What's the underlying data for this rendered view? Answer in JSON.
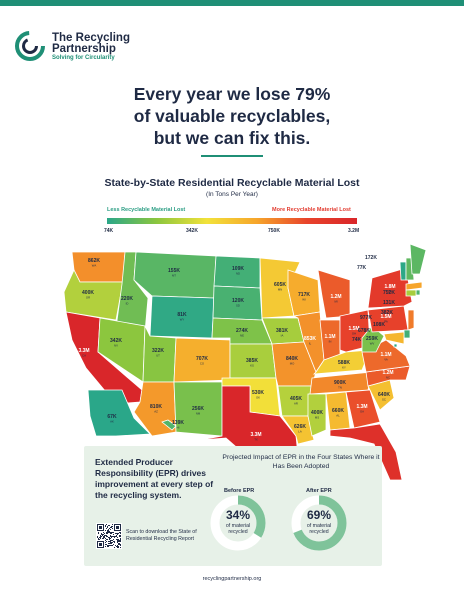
{
  "brand": {
    "name_line1": "The Recycling",
    "name_line2": "Partnership",
    "tagline": "Solving for Circularity",
    "accent_color": "#1f8f76"
  },
  "headline": {
    "line1": "Every year we lose 79%",
    "line2": "of valuable recyclables,",
    "line3": "but we can fix this."
  },
  "map": {
    "title": "State-by-State Residential Recyclable Material Lost",
    "subtitle": "(In Tons Per Year)",
    "legend": {
      "less": "Less Recyclable Material Lost",
      "more": "More Recyclable Material Lost",
      "ticks": [
        "74K",
        "342K",
        "750K",
        "3.2M"
      ]
    },
    "states": [
      {
        "abbr": "WA",
        "value": "862K"
      },
      {
        "abbr": "OR",
        "value": "400K"
      },
      {
        "abbr": "CA",
        "value": "3.3M"
      },
      {
        "abbr": "ID",
        "value": "220K"
      },
      {
        "abbr": "NV",
        "value": "342K"
      },
      {
        "abbr": "MT",
        "value": "155K"
      },
      {
        "abbr": "WY",
        "value": "81K"
      },
      {
        "abbr": "UT",
        "value": "322K"
      },
      {
        "abbr": "AZ",
        "value": "810K"
      },
      {
        "abbr": "CO",
        "value": "707K"
      },
      {
        "abbr": "NM",
        "value": "256K"
      },
      {
        "abbr": "ND",
        "value": "109K"
      },
      {
        "abbr": "SD",
        "value": "120K"
      },
      {
        "abbr": "NE",
        "value": "274K"
      },
      {
        "abbr": "KS",
        "value": "385K"
      },
      {
        "abbr": "OK",
        "value": "530K"
      },
      {
        "abbr": "TX",
        "value": "3.3M"
      },
      {
        "abbr": "MN",
        "value": "605K"
      },
      {
        "abbr": "IA",
        "value": "381K"
      },
      {
        "abbr": "MO",
        "value": "840K"
      },
      {
        "abbr": "AR",
        "value": "405K"
      },
      {
        "abbr": "LA",
        "value": "626K"
      },
      {
        "abbr": "WI",
        "value": "717K"
      },
      {
        "abbr": "IL",
        "value": "853K"
      },
      {
        "abbr": "MI",
        "value": "1.2M"
      },
      {
        "abbr": "IN",
        "value": "1.1M"
      },
      {
        "abbr": "OH",
        "value": "1.5M"
      },
      {
        "abbr": "KY",
        "value": "588K"
      },
      {
        "abbr": "TN",
        "value": "900K"
      },
      {
        "abbr": "MS",
        "value": "400K"
      },
      {
        "abbr": "AL",
        "value": "660K"
      },
      {
        "abbr": "GA",
        "value": "1.3M"
      },
      {
        "abbr": "FL",
        "value": "2.4M"
      },
      {
        "abbr": "SC",
        "value": "640K"
      },
      {
        "abbr": "NC",
        "value": "1.2M"
      },
      {
        "abbr": "VA",
        "value": "1.1M"
      },
      {
        "abbr": "WV",
        "value": "259K"
      },
      {
        "abbr": "PA",
        "value": "1.5M"
      },
      {
        "abbr": "NY",
        "value": "1.8M"
      },
      {
        "abbr": "VT",
        "value": "77K"
      },
      {
        "abbr": "NH",
        "value": "172K"
      },
      {
        "abbr": "ME",
        "value": "161K"
      },
      {
        "abbr": "MA",
        "value": "752K"
      },
      {
        "abbr": "RI",
        "value": "131K"
      },
      {
        "abbr": "CT",
        "value": "382K"
      },
      {
        "abbr": "NJ",
        "value": "977K"
      },
      {
        "abbr": "DE",
        "value": "108K"
      },
      {
        "abbr": "MD",
        "value": "678K"
      },
      {
        "abbr": "DC",
        "value": "74K"
      },
      {
        "abbr": "AK",
        "value": "67K"
      },
      {
        "abbr": "HI",
        "value": "139K"
      }
    ]
  },
  "epr": {
    "heading": "Extended Producer Responsibility (EPR) drives improvement at every step of the recycling system.",
    "scan_text": "Scan to download the State of Residential Recycling Report",
    "projection_title": "Projected Impact of EPR in the Four States Where it Has Been Adopted",
    "before": {
      "label": "Before EPR",
      "percent": "34%",
      "caption_line1": "of material",
      "caption_line2": "recycled",
      "fraction": 0.34
    },
    "after": {
      "label": "After EPR",
      "percent": "69%",
      "caption_line1": "of material",
      "caption_line2": "recycled",
      "fraction": 0.69
    }
  },
  "footer": {
    "url": "recyclingpartnership.org"
  }
}
